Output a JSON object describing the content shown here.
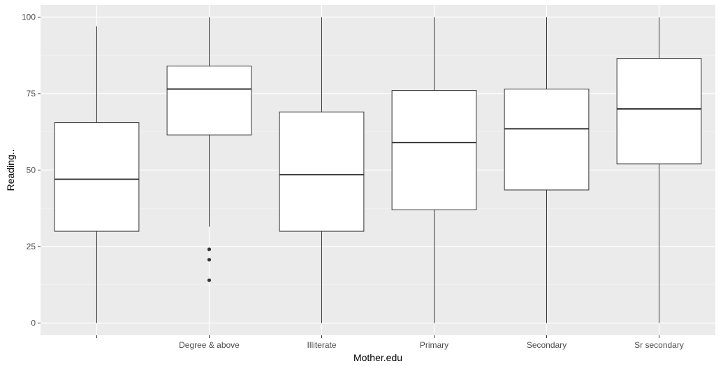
{
  "chart_data": {
    "type": "boxplot",
    "xlabel": "Mother.edu",
    "ylabel": "Reading..",
    "ylim": [
      -4,
      104
    ],
    "y_ticks": [
      0,
      25,
      50,
      75,
      100
    ],
    "y_tick_labels": [
      "0",
      "25",
      "50",
      "75",
      "100"
    ],
    "categories": [
      "",
      "Degree & above",
      "Illiterate",
      "Primary",
      "Secondary",
      "Sr secondary"
    ],
    "boxes": [
      {
        "category": "",
        "min": 0,
        "q1": 30,
        "median": 47,
        "q3": 65.5,
        "max": 97,
        "outliers": []
      },
      {
        "category": "Degree & above",
        "min": 31.5,
        "q1": 61.5,
        "median": 76.5,
        "q3": 84,
        "max": 100,
        "outliers": [
          24.1,
          20.7,
          14
        ]
      },
      {
        "category": "Illiterate",
        "min": 0,
        "q1": 30,
        "median": 48.5,
        "q3": 69,
        "max": 100,
        "outliers": []
      },
      {
        "category": "Primary",
        "min": 0,
        "q1": 37,
        "median": 59,
        "q3": 76,
        "max": 100,
        "outliers": []
      },
      {
        "category": "Secondary",
        "min": 0,
        "q1": 43.5,
        "median": 63.5,
        "q3": 76.5,
        "max": 100,
        "outliers": []
      },
      {
        "category": "Sr secondary",
        "min": 0,
        "q1": 52,
        "median": 70,
        "q3": 86.5,
        "max": 100,
        "outliers": []
      }
    ],
    "grid": true,
    "legend": "none",
    "colors": {
      "panel_background": "#ebebeb",
      "grid_major": "#ffffff",
      "grid_minor": "#f4f4f4",
      "box_fill": "#ffffff",
      "box_stroke": "#333333",
      "tick_text": "#4d4d4d"
    }
  }
}
